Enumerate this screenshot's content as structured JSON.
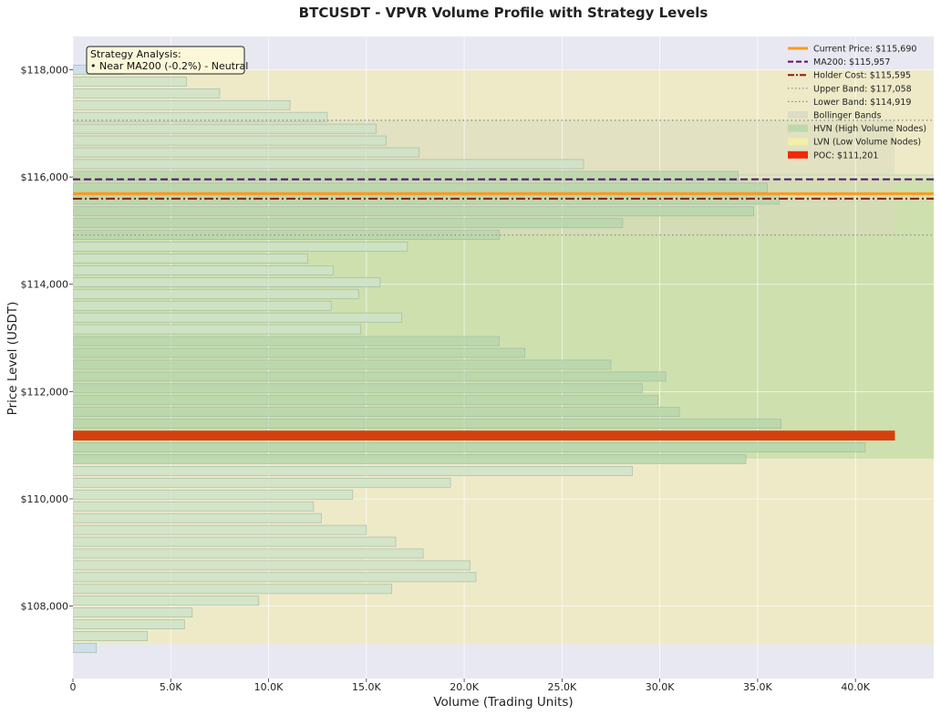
{
  "chart_data": {
    "type": "bar",
    "orientation": "horizontal",
    "title": "BTCUSDT - VPVR Volume Profile with Strategy Levels",
    "xlabel": "Volume (Trading Units)",
    "ylabel": "Price Level (USDT)",
    "xlim": [
      0,
      44000
    ],
    "ylim": [
      106650,
      118620
    ],
    "x_ticks": [
      0,
      5000,
      10000,
      15000,
      20000,
      25000,
      30000,
      35000,
      40000
    ],
    "x_tick_labels": [
      "0",
      "5.0K",
      "10.0K",
      "15.0K",
      "20.0K",
      "25.0K",
      "30.0K",
      "35.0K",
      "40.0K"
    ],
    "y_ticks": [
      108000,
      110000,
      112000,
      114000,
      116000,
      118000
    ],
    "y_tick_labels": [
      "$108,000",
      "$110,000",
      "$112,000",
      "$114,000",
      "$116,000",
      "$118,000"
    ],
    "grid": true,
    "legend_position": "top-right",
    "bin_size": 220,
    "bars": [
      {
        "price": 107220,
        "volume": 1200,
        "kind": "lvn"
      },
      {
        "price": 107440,
        "volume": 3800,
        "kind": "normal"
      },
      {
        "price": 107660,
        "volume": 5700,
        "kind": "normal"
      },
      {
        "price": 107880,
        "volume": 6100,
        "kind": "normal"
      },
      {
        "price": 108100,
        "volume": 9500,
        "kind": "normal"
      },
      {
        "price": 108320,
        "volume": 16300,
        "kind": "normal"
      },
      {
        "price": 108540,
        "volume": 20600,
        "kind": "normal"
      },
      {
        "price": 108760,
        "volume": 20300,
        "kind": "normal"
      },
      {
        "price": 108980,
        "volume": 17900,
        "kind": "normal"
      },
      {
        "price": 109200,
        "volume": 16500,
        "kind": "normal"
      },
      {
        "price": 109420,
        "volume": 15000,
        "kind": "normal"
      },
      {
        "price": 109640,
        "volume": 12700,
        "kind": "normal"
      },
      {
        "price": 109860,
        "volume": 12300,
        "kind": "normal"
      },
      {
        "price": 110080,
        "volume": 14300,
        "kind": "normal"
      },
      {
        "price": 110300,
        "volume": 19300,
        "kind": "normal"
      },
      {
        "price": 110520,
        "volume": 28600,
        "kind": "normal"
      },
      {
        "price": 110740,
        "volume": 34400,
        "kind": "hvn"
      },
      {
        "price": 110960,
        "volume": 40500,
        "kind": "hvn"
      },
      {
        "price": 111180,
        "volume": 42000,
        "kind": "poc"
      },
      {
        "price": 111400,
        "volume": 36200,
        "kind": "hvn"
      },
      {
        "price": 111620,
        "volume": 31000,
        "kind": "hvn"
      },
      {
        "price": 111840,
        "volume": 29900,
        "kind": "hvn"
      },
      {
        "price": 112060,
        "volume": 29100,
        "kind": "hvn"
      },
      {
        "price": 112280,
        "volume": 30300,
        "kind": "hvn"
      },
      {
        "price": 112500,
        "volume": 27500,
        "kind": "hvn"
      },
      {
        "price": 112720,
        "volume": 23100,
        "kind": "hvn"
      },
      {
        "price": 112940,
        "volume": 21800,
        "kind": "hvn"
      },
      {
        "price": 113160,
        "volume": 14700,
        "kind": "normal"
      },
      {
        "price": 113380,
        "volume": 16800,
        "kind": "normal"
      },
      {
        "price": 113600,
        "volume": 13200,
        "kind": "normal"
      },
      {
        "price": 113820,
        "volume": 14600,
        "kind": "normal"
      },
      {
        "price": 114040,
        "volume": 15700,
        "kind": "normal"
      },
      {
        "price": 114260,
        "volume": 13300,
        "kind": "normal"
      },
      {
        "price": 114480,
        "volume": 12000,
        "kind": "normal"
      },
      {
        "price": 114700,
        "volume": 17100,
        "kind": "normal"
      },
      {
        "price": 114920,
        "volume": 21800,
        "kind": "hvn"
      },
      {
        "price": 115140,
        "volume": 28100,
        "kind": "hvn"
      },
      {
        "price": 115360,
        "volume": 34800,
        "kind": "hvn"
      },
      {
        "price": 115580,
        "volume": 36100,
        "kind": "hvn"
      },
      {
        "price": 115800,
        "volume": 35500,
        "kind": "hvn"
      },
      {
        "price": 116020,
        "volume": 34000,
        "kind": "hvn"
      },
      {
        "price": 116240,
        "volume": 26100,
        "kind": "normal"
      },
      {
        "price": 116460,
        "volume": 17700,
        "kind": "normal"
      },
      {
        "price": 116680,
        "volume": 16000,
        "kind": "normal"
      },
      {
        "price": 116900,
        "volume": 15500,
        "kind": "normal"
      },
      {
        "price": 117120,
        "volume": 13000,
        "kind": "normal"
      },
      {
        "price": 117340,
        "volume": 11100,
        "kind": "normal"
      },
      {
        "price": 117560,
        "volume": 7500,
        "kind": "normal"
      },
      {
        "price": 117780,
        "volume": 5800,
        "kind": "normal"
      },
      {
        "price": 118000,
        "volume": 2600,
        "kind": "lvn"
      }
    ],
    "levels": {
      "current_price": 115690,
      "ma200": 115957,
      "holder_cost": 115595,
      "upper_band": 117058,
      "lower_band": 114919,
      "poc": 111201
    },
    "zones": {
      "lvn_range": [
        107290,
        117990
      ],
      "hvn_range": [
        110750,
        116050
      ],
      "hvn_xmax": 44000,
      "bollinger_xmax": 42000
    },
    "legend": [
      {
        "label": "Current Price: $115,690",
        "style": "solid",
        "color": "#ff9a1a"
      },
      {
        "label": "MA200: $115,957",
        "style": "dashed",
        "color": "#5a1070"
      },
      {
        "label": "Holder Cost: $115,595",
        "style": "dashdot",
        "color": "#8b1a1a"
      },
      {
        "label": "Upper Band: $117,058",
        "style": "dotted",
        "color": "#888888"
      },
      {
        "label": "Lower Band: $114,919",
        "style": "dotted",
        "color": "#888888"
      },
      {
        "label": "Bollinger Bands",
        "style": "patch",
        "color": "#d9d9c6"
      },
      {
        "label": "HVN (High Volume Nodes)",
        "style": "patch",
        "color": "#b6d7a8"
      },
      {
        "label": "LVN (Low Volume Nodes)",
        "style": "patch",
        "color": "#f5f0a8"
      },
      {
        "label": "POC: $111,201",
        "style": "patch",
        "color": "#ee2a0b"
      }
    ],
    "annotation": {
      "heading": "Strategy Analysis:",
      "line": "• Near MA200 (-0.2%) - Neutral"
    },
    "colors": {
      "plot_bg": "#e8e8f2",
      "lvn_zone": "#eeeac8",
      "hvn_zone": "#cde0ae",
      "bollinger_zone": "#d8d8bc",
      "bar_fill": "#cfe3c8",
      "bar_hvn_fill": "#b9d7ad",
      "bar_lvn_fill": "#c9dfe8",
      "bar_edge": "#9fb5a0",
      "poc": "#d6400f",
      "current_price": "#ff9a1a",
      "ma200": "#5a1070",
      "holder_cost": "#8b1a1a",
      "band": "#888888",
      "grid": "#ffffff"
    }
  }
}
